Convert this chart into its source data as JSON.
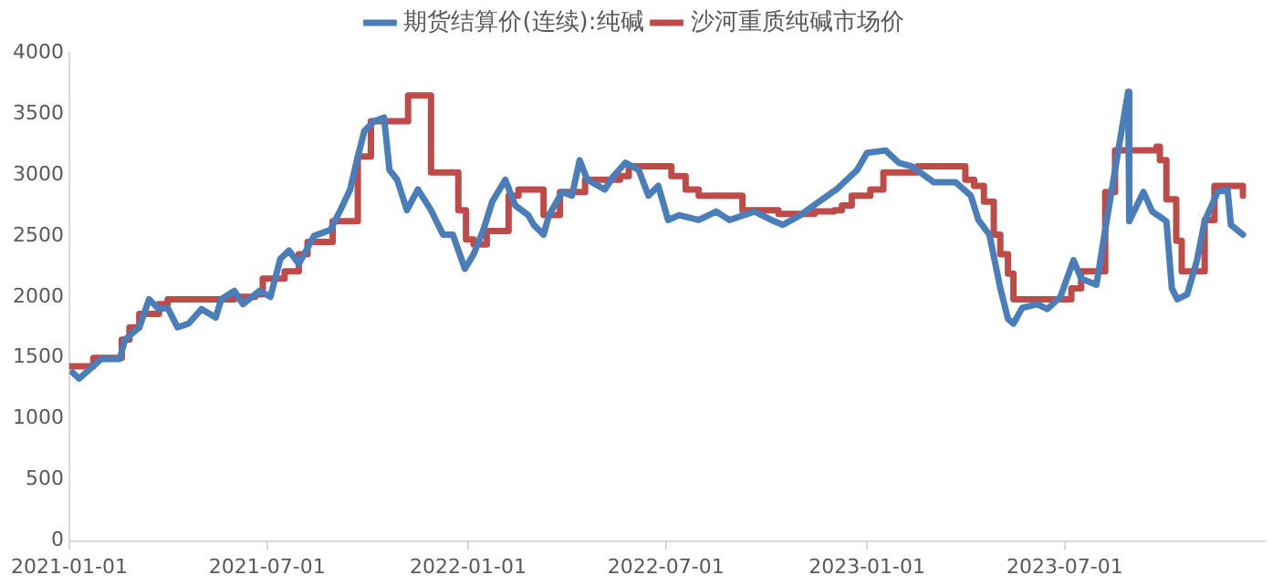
{
  "chart_data": {
    "type": "line",
    "xlim": [
      "2021-01-01",
      "2023-12-31"
    ],
    "xticks": [
      "2021-01-01",
      "2021-07-01",
      "2022-01-01",
      "2022-07-01",
      "2023-01-01",
      "2023-07-01"
    ],
    "ylim": [
      0,
      4000
    ],
    "yticks": [
      0,
      500,
      1000,
      1500,
      2000,
      2500,
      3000,
      3500,
      4000
    ],
    "grid": false,
    "legend": "top",
    "series": [
      {
        "name": "期货结算价(连续):纯碱",
        "color": "#4a7ebb",
        "type": "line",
        "x": [
          "2021-01-04",
          "2021-01-10",
          "2021-01-30",
          "2021-02-16",
          "2021-02-21",
          "2021-03-06",
          "2021-03-15",
          "2021-03-24",
          "2021-04-01",
          "2021-04-10",
          "2021-04-20",
          "2021-05-02",
          "2021-05-15",
          "2021-05-20",
          "2021-06-01",
          "2021-06-09",
          "2021-06-24",
          "2021-07-04",
          "2021-07-13",
          "2021-07-21",
          "2021-07-30",
          "2021-08-13",
          "2021-08-28",
          "2021-09-06",
          "2021-09-15",
          "2021-09-22",
          "2021-09-28",
          "2021-10-07",
          "2021-10-16",
          "2021-10-21",
          "2021-10-28",
          "2021-11-06",
          "2021-11-16",
          "2021-11-28",
          "2021-12-09",
          "2021-12-18",
          "2021-12-29",
          "2022-01-06",
          "2022-01-15",
          "2022-01-23",
          "2022-02-04",
          "2022-02-13",
          "2022-02-25",
          "2022-03-02",
          "2022-03-11",
          "2022-03-16",
          "2022-03-28",
          "2022-04-06",
          "2022-04-13",
          "2022-04-20",
          "2022-05-06",
          "2022-05-14",
          "2022-05-25",
          "2022-06-06",
          "2022-06-15",
          "2022-06-24",
          "2022-07-03",
          "2022-07-13",
          "2022-07-31",
          "2022-08-16",
          "2022-08-28",
          "2022-09-20",
          "2022-10-08",
          "2022-10-16",
          "2022-11-01",
          "2022-11-18",
          "2022-12-04",
          "2022-12-23",
          "2023-01-01",
          "2023-01-18",
          "2023-01-30",
          "2023-02-11",
          "2023-03-03",
          "2023-03-23",
          "2023-04-06",
          "2023-04-13",
          "2023-04-23",
          "2023-05-03",
          "2023-05-10",
          "2023-05-15",
          "2023-05-23",
          "2023-06-06",
          "2023-06-15",
          "2023-06-27",
          "2023-07-09",
          "2023-07-16",
          "2023-07-30",
          "2023-08-07",
          "2023-08-16",
          "2023-08-24",
          "2023-08-28",
          "2023-08-29",
          "2023-09-11",
          "2023-09-19",
          "2023-10-02",
          "2023-10-07",
          "2023-10-12",
          "2023-10-21",
          "2023-10-30",
          "2023-11-06",
          "2023-11-18",
          "2023-11-27",
          "2023-11-30",
          "2023-12-11"
        ],
        "values": [
          1380,
          1330,
          1490,
          1490,
          1650,
          1750,
          1980,
          1900,
          1910,
          1750,
          1780,
          1900,
          1830,
          1980,
          2050,
          1940,
          2050,
          2000,
          2310,
          2380,
          2270,
          2500,
          2550,
          2710,
          2880,
          3150,
          3360,
          3440,
          3470,
          3040,
          2960,
          2710,
          2880,
          2710,
          2510,
          2510,
          2230,
          2350,
          2550,
          2780,
          2960,
          2750,
          2670,
          2590,
          2510,
          2670,
          2860,
          2830,
          3120,
          2960,
          2880,
          2990,
          3100,
          3040,
          2830,
          2910,
          2630,
          2670,
          2630,
          2700,
          2630,
          2700,
          2620,
          2590,
          2670,
          2780,
          2880,
          3040,
          3180,
          3200,
          3100,
          3070,
          2940,
          2940,
          2830,
          2630,
          2510,
          2070,
          1820,
          1780,
          1910,
          1940,
          1900,
          2000,
          2300,
          2150,
          2100,
          2550,
          3040,
          3470,
          3680,
          2620,
          2860,
          2700,
          2620,
          2070,
          1980,
          2020,
          2300,
          2620,
          2860,
          2880,
          2590,
          2510
        ]
      },
      {
        "name": "沙河重质纯碱市场价",
        "color": "#be4b48",
        "type": "step",
        "x": [
          "2021-01-01",
          "2021-01-23",
          "2021-02-18",
          "2021-02-25",
          "2021-03-06",
          "2021-03-24",
          "2021-04-01",
          "2021-06-01",
          "2021-06-20",
          "2021-06-27",
          "2021-07-17",
          "2021-07-30",
          "2021-08-07",
          "2021-08-30",
          "2021-09-22",
          "2021-10-04",
          "2021-11-07",
          "2021-11-28",
          "2021-12-23",
          "2021-12-30",
          "2022-01-06",
          "2022-01-18",
          "2022-02-07",
          "2022-02-16",
          "2022-03-11",
          "2022-03-26",
          "2022-04-18",
          "2022-05-20",
          "2022-05-28",
          "2022-07-06",
          "2022-07-19",
          "2022-07-31",
          "2022-09-09",
          "2022-10-12",
          "2022-11-14",
          "2022-12-02",
          "2022-12-09",
          "2022-12-18",
          "2023-01-04",
          "2023-01-16",
          "2023-02-16",
          "2023-04-01",
          "2023-04-09",
          "2023-04-18",
          "2023-04-27",
          "2023-05-03",
          "2023-05-10",
          "2023-05-15",
          "2023-07-07",
          "2023-07-16",
          "2023-08-07",
          "2023-08-16",
          "2023-09-23",
          "2023-09-26",
          "2023-10-02",
          "2023-10-11",
          "2023-10-16",
          "2023-11-06",
          "2023-11-15",
          "2023-12-11"
        ],
        "values": [
          1430,
          1500,
          1650,
          1750,
          1860,
          1940,
          1980,
          2000,
          2020,
          2150,
          2210,
          2350,
          2450,
          2620,
          3150,
          3440,
          3650,
          3020,
          2710,
          2470,
          2430,
          2540,
          2830,
          2880,
          2670,
          2860,
          2960,
          2990,
          3070,
          2990,
          2880,
          2830,
          2710,
          2680,
          2700,
          2710,
          2750,
          2830,
          2880,
          3020,
          3070,
          2960,
          2910,
          2780,
          2510,
          2350,
          2190,
          1980,
          2070,
          2210,
          2860,
          3200,
          3230,
          3120,
          2800,
          2460,
          2210,
          2630,
          2910,
          2830
        ]
      }
    ]
  }
}
